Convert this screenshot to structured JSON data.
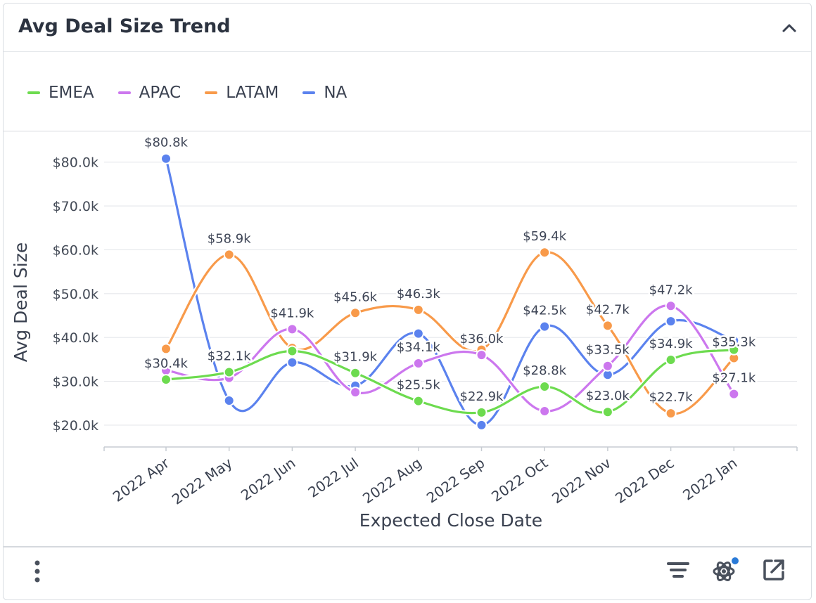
{
  "header": {
    "title": "Avg Deal Size Trend"
  },
  "icons": {
    "collapse": "chevron-up-icon",
    "menu": "vertical-dots-icon",
    "filter": "filter-lines-icon",
    "ai": "atom-icon",
    "open": "external-link-icon"
  },
  "colors": {
    "EMEA": "#6ddb4f",
    "APAC": "#cc77ee",
    "LATAM": "#f89a4a",
    "NA": "#5b82ee",
    "ai_dot": "#2b7bd8"
  },
  "chart_data": {
    "type": "line",
    "title": "",
    "xlabel": "Expected Close Date",
    "ylabel": "Avg Deal Size",
    "categories": [
      "2022 Apr",
      "2022 May",
      "2022 Jun",
      "2022 Jul",
      "2022 Aug",
      "2022 Sep",
      "2022 Oct",
      "2022 Nov",
      "2022 Dec",
      "2022 Jan"
    ],
    "yticks": [
      "$20.0k",
      "$30.0k",
      "$40.0k",
      "$50.0k",
      "$60.0k",
      "$70.0k",
      "$80.0k"
    ],
    "ytick_values": [
      20,
      30,
      40,
      50,
      60,
      70,
      80
    ],
    "ylim": [
      15.5,
      83
    ],
    "grid": true,
    "legend_position": "top-left",
    "series": [
      {
        "name": "EMEA",
        "values": [
          30.4,
          32.1,
          36.9,
          31.9,
          25.5,
          22.9,
          28.8,
          23.0,
          34.9,
          37.2
        ]
      },
      {
        "name": "APAC",
        "values": [
          32.5,
          30.8,
          41.9,
          27.5,
          34.1,
          36.0,
          23.2,
          33.5,
          47.2,
          27.1
        ]
      },
      {
        "name": "LATAM",
        "values": [
          37.4,
          58.9,
          37.6,
          45.6,
          46.3,
          37.2,
          59.4,
          42.7,
          22.7,
          35.3
        ]
      },
      {
        "name": "NA",
        "values": [
          80.8,
          25.6,
          34.3,
          29.0,
          40.9,
          20.0,
          42.5,
          31.5,
          43.7,
          39.3
        ]
      }
    ],
    "data_labels": [
      {
        "text": "$80.8k",
        "series": "NA",
        "index": 0
      },
      {
        "text": "$30.4k",
        "series": "EMEA",
        "index": 0
      },
      {
        "text": "$58.9k",
        "series": "LATAM",
        "index": 1
      },
      {
        "text": "$32.1k",
        "series": "EMEA",
        "index": 1
      },
      {
        "text": "$41.9k",
        "series": "APAC",
        "index": 2
      },
      {
        "text": "$45.6k",
        "series": "LATAM",
        "index": 3
      },
      {
        "text": "$31.9k",
        "series": "EMEA",
        "index": 3
      },
      {
        "text": "$46.3k",
        "series": "LATAM",
        "index": 4
      },
      {
        "text": "$34.1k",
        "series": "APAC",
        "index": 4
      },
      {
        "text": "$25.5k",
        "series": "EMEA",
        "index": 4
      },
      {
        "text": "$36.0k",
        "series": "APAC",
        "index": 5
      },
      {
        "text": "$22.9k",
        "series": "EMEA",
        "index": 5
      },
      {
        "text": "$59.4k",
        "series": "LATAM",
        "index": 6
      },
      {
        "text": "$42.5k",
        "series": "NA",
        "index": 6
      },
      {
        "text": "$28.8k",
        "series": "EMEA",
        "index": 6
      },
      {
        "text": "$42.7k",
        "series": "LATAM",
        "index": 7
      },
      {
        "text": "$33.5k",
        "series": "APAC",
        "index": 7
      },
      {
        "text": "$23.0k",
        "series": "EMEA",
        "index": 7
      },
      {
        "text": "$47.2k",
        "series": "APAC",
        "index": 8
      },
      {
        "text": "$34.9k",
        "series": "EMEA",
        "index": 8
      },
      {
        "text": "$22.7k",
        "series": "LATAM",
        "index": 8
      },
      {
        "text": "$35.3k",
        "series": "LATAM",
        "index": 9
      },
      {
        "text": "$27.1k",
        "series": "APAC",
        "index": 9
      }
    ]
  }
}
